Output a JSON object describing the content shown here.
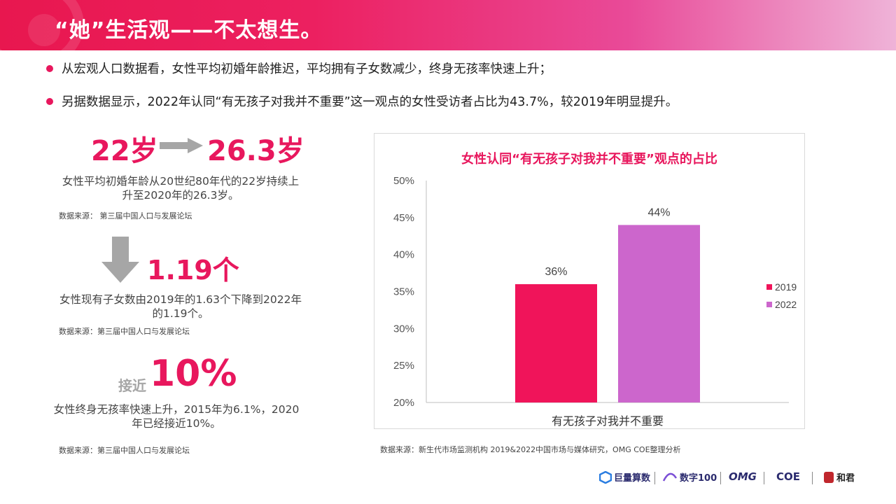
{
  "header": {
    "title": "“她”生活观——不太想生。"
  },
  "bullets": [
    "从宏观人口数据看，女性平均初婚年龄推迟，平均拥有子女数减少，终身无孩率快速上升；",
    "另据数据显示，2022年认同“有无孩子对我并不重要”这一观点的女性受访者占比为43.7%，较2019年明显提升。"
  ],
  "stats": {
    "age_from": "22岁",
    "age_to": "26.3岁",
    "age_desc_line1": "女性平均初婚年龄从20世纪80年代的22岁持续上",
    "age_desc_line2": "升至2020年的26.3岁。",
    "age_source": "数据来源： 第三届中国人口与发展论坛",
    "children_value": "1.19个",
    "children_desc_line1": "女性现有子女数由2019年的1.63个下降到2022年",
    "children_desc_line2": "的1.19个。",
    "children_source": "数据来源：第三届中国人口与发展论坛",
    "childless_prefix": "接近",
    "childless_value": "10%",
    "childless_desc_line1": "女性终身无孩率快速上升，2015年为6.1%，2020",
    "childless_desc_line2": "年已经接近10%。",
    "childless_source": "数据来源：第三届中国人口与发展论坛"
  },
  "chart_source": "数据来源：新生代市场监测机构 2019&2022中国市场与媒体研究，OMG COE整理分析",
  "chart_data": {
    "type": "bar",
    "title": "女性认同“有无孩子对我并不重要”观点的占比",
    "categories": [
      "有无孩子对我并不重要"
    ],
    "series": [
      {
        "name": "2019",
        "values": [
          36
        ],
        "label": "36%",
        "color": "#f0145a"
      },
      {
        "name": "2022",
        "values": [
          44
        ],
        "label": "44%",
        "color": "#cc66cc"
      }
    ],
    "ylim": [
      20,
      50
    ],
    "yticks": [
      "20%",
      "25%",
      "30%",
      "35%",
      "40%",
      "45%",
      "50%"
    ],
    "legend_position": "right",
    "grid": false
  },
  "logos": [
    "巨量算数",
    "数字100",
    "OMG",
    "COE",
    "和君"
  ]
}
